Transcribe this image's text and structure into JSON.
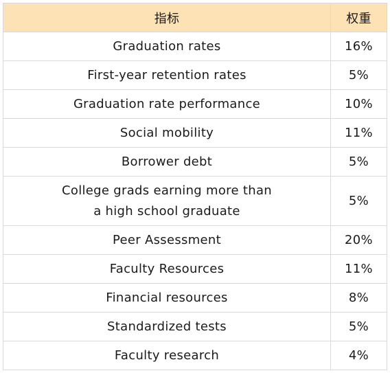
{
  "colors": {
    "header_bg": "#fde2b5",
    "border": "#d9d9d9"
  },
  "table": {
    "headers": [
      "指标",
      "权重"
    ],
    "rows": [
      {
        "metric_lines": [
          "Graduation rates"
        ],
        "weight": "16%"
      },
      {
        "metric_lines": [
          "First-year retention rates"
        ],
        "weight": "5%"
      },
      {
        "metric_lines": [
          "Graduation rate performance"
        ],
        "weight": "10%"
      },
      {
        "metric_lines": [
          "Social mobility"
        ],
        "weight": "11%"
      },
      {
        "metric_lines": [
          "Borrower debt"
        ],
        "weight": "5%"
      },
      {
        "metric_lines": [
          "College grads earning more than",
          "a high school graduate"
        ],
        "weight": "5%"
      },
      {
        "metric_lines": [
          "Peer Assessment"
        ],
        "weight": "20%"
      },
      {
        "metric_lines": [
          "Faculty Resources"
        ],
        "weight": "11%"
      },
      {
        "metric_lines": [
          "Financial resources"
        ],
        "weight": "8%"
      },
      {
        "metric_lines": [
          "Standardized tests"
        ],
        "weight": "5%"
      },
      {
        "metric_lines": [
          "Faculty research"
        ],
        "weight": "4%"
      }
    ]
  }
}
